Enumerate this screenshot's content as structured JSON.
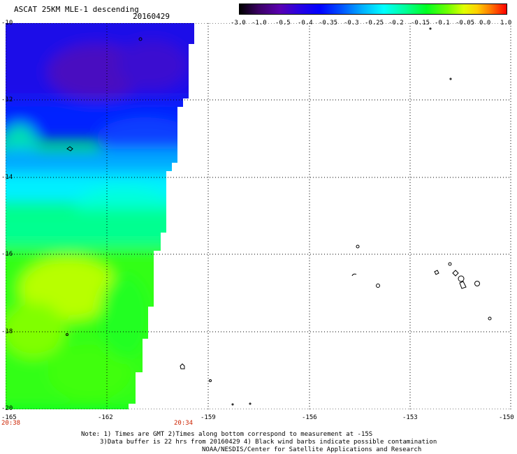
{
  "title": "ASCAT 25KM MLE-1 descending",
  "date": "20160429",
  "colorbar": {
    "labels": [
      "-3.0",
      "-1.0",
      "-0.5",
      "-0.4",
      "-0.35",
      "-0.3",
      "-0.25",
      "-0.2",
      "-0.15",
      "-0.1",
      "-0.05",
      "0.0",
      "1.0"
    ],
    "colors": [
      "#000000",
      "#5a00b0",
      "#0000ff",
      "#00b0ff",
      "#00ffff",
      "#00ff22",
      "#e0ff00",
      "#ff7a00",
      "#ff0000"
    ]
  },
  "axes": {
    "lat_labels": [
      "-10",
      "-12",
      "-14",
      "-16",
      "-18",
      "-20"
    ],
    "lon_labels": [
      "-165",
      "-162",
      "-159",
      "-156",
      "-153",
      "-150"
    ],
    "lat_range": [
      -20,
      -10
    ],
    "lon_range": [
      -165,
      -150
    ],
    "grid": true,
    "grid_style": "dotted"
  },
  "times": [
    "20:38",
    "20:34"
  ],
  "notes": [
    "Note: 1) Times are GMT 2)Times along bottom correspond to measurement at -15S",
    "3)Data buffer is 22 hrs from 20160429 4) Black wind barbs indicate possible contamination",
    "NOAA/NESDIS/Center for Satellite Applications and Research"
  ]
}
